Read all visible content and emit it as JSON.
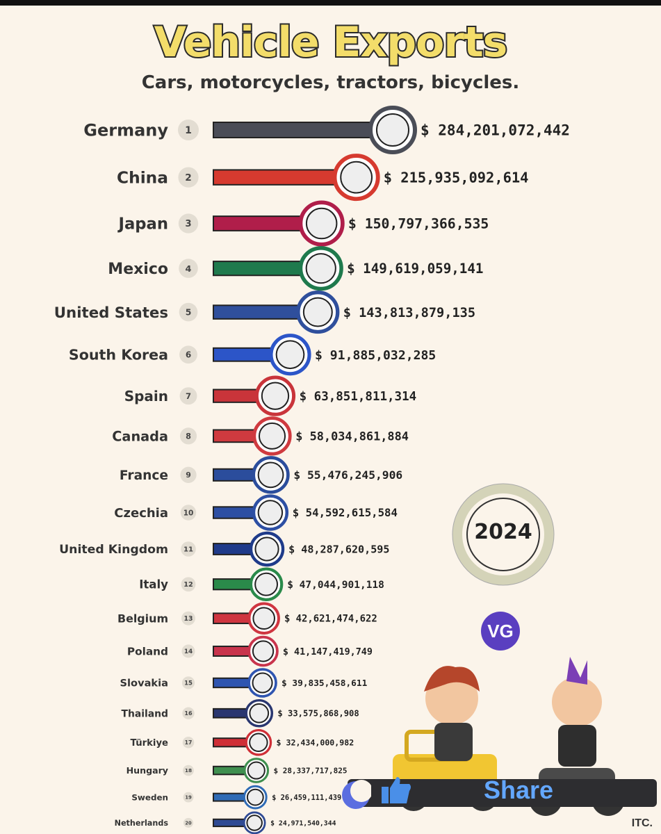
{
  "header": {
    "title": "Vehicle Exports",
    "subtitle": "Cars, motorcycles, tractors, bicycles."
  },
  "year": "2024",
  "badge": "VG",
  "share_label": "Share",
  "credit": "ITC.",
  "chart_data": {
    "type": "bar",
    "orientation": "horizontal",
    "title": "Vehicle Exports",
    "subtitle": "Cars, motorcycles, tractors, bicycles.",
    "categories": [
      "Germany",
      "China",
      "Japan",
      "Mexico",
      "United States",
      "South Korea",
      "Spain",
      "Canada",
      "France",
      "Czechia",
      "United Kingdom",
      "Italy",
      "Belgium",
      "Poland",
      "Slovakia",
      "Thailand",
      "Türkiye",
      "Hungary",
      "Sweden",
      "Netherlands"
    ],
    "ranks": [
      "1",
      "2",
      "3",
      "4",
      "5",
      "6",
      "7",
      "8",
      "9",
      "10",
      "11",
      "12",
      "13",
      "14",
      "15",
      "16",
      "17",
      "18",
      "19",
      "20"
    ],
    "values": [
      284201072442,
      215935092614,
      150797366535,
      149619059141,
      143813879135,
      91885032285,
      63851811314,
      58034861884,
      55476245906,
      54592615584,
      48287620595,
      47044901118,
      42621474622,
      41147419749,
      39835458611,
      33575868908,
      32434000982,
      28337717825,
      26459111439,
      24971540344
    ],
    "value_labels": [
      "$ 284,201,072,442",
      "$ 215,935,092,614",
      "$ 150,797,366,535",
      "$ 149,619,059,141",
      "$ 143,813,879,135",
      "$ 91,885,032,285",
      "$ 63,851,811,314",
      "$ 58,034,861,884",
      "$ 55,476,245,906",
      "$ 54,592,615,584",
      "$ 48,287,620,595",
      "$ 47,044,901,118",
      "$ 42,621,474,622",
      "$ 41,147,419,749",
      "$ 39,835,458,611",
      "$ 33,575,868,908",
      "$ 32,434,000,982",
      "$ 28,337,717,825",
      "$ 26,459,111,439",
      "$ 24,971,540,344"
    ],
    "colors": [
      "#4a4d57",
      "#d63a2f",
      "#b01e4a",
      "#1f7a4d",
      "#2f4f9c",
      "#2c55c8",
      "#c9343a",
      "#cf3a3f",
      "#2b4d9c",
      "#2d4fa3",
      "#1f3b8a",
      "#2a8a4a",
      "#cf3540",
      "#c8344c",
      "#2f55b0",
      "#2a3770",
      "#cf2f37",
      "#3f8f4f",
      "#2f6bb5",
      "#2f4a93"
    ],
    "legend": "none",
    "grid": false
  }
}
